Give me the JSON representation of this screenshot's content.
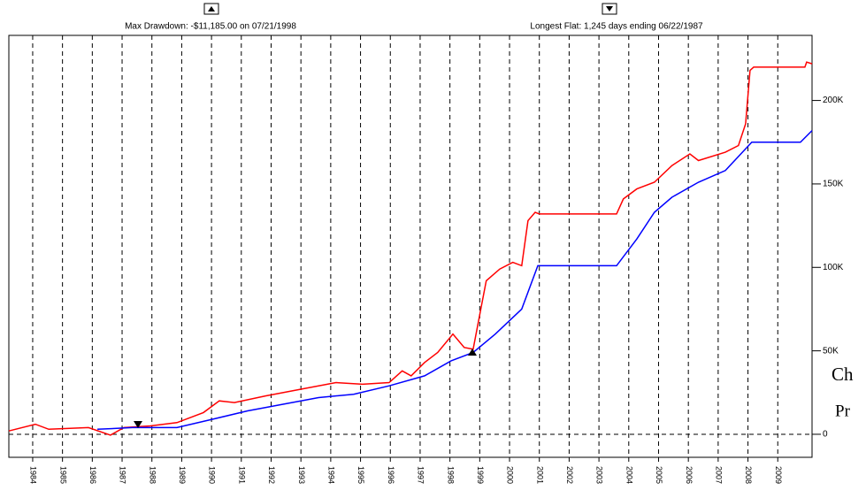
{
  "chart_data": {
    "type": "line",
    "annotations": [
      "Max Drawdown: -$11,185.00 on 07/21/1998",
      "Longest Flat: 1,245 days ending 06/22/1987"
    ],
    "overlay_text": [
      "Ch",
      "Pr"
    ],
    "xlim": [
      1983.2,
      2010.15
    ],
    "xticks": [
      1984,
      1985,
      1986,
      1987,
      1988,
      1989,
      1990,
      1991,
      1992,
      1993,
      1994,
      1995,
      1996,
      1997,
      1998,
      1999,
      2000,
      2001,
      2002,
      2003,
      2004,
      2005,
      2006,
      2007,
      2008,
      2009
    ],
    "ylim": [
      -13.8,
      239
    ],
    "yticks": [
      0,
      {
        "value": 50,
        "label": "50K"
      },
      {
        "value": 100,
        "label": "100K"
      },
      {
        "value": 150,
        "label": "150K"
      },
      {
        "value": 200,
        "label": "200K"
      }
    ],
    "grid": true,
    "series": [
      {
        "color": "#ff0000",
        "x": [
          1983.2,
          1984.09,
          1984.54,
          1985.87,
          1986.61,
          1987.06,
          1987.95,
          1988.84,
          1989.73,
          1990.26,
          1990.77,
          1991.81,
          1993.0,
          1994.18,
          1995.07,
          1995.96,
          1996.4,
          1996.7,
          1997.15,
          1997.59,
          1998.1,
          1998.48,
          1998.78,
          1999.08,
          1999.22,
          1999.67,
          2000.11,
          2000.41,
          2000.62,
          2000.86,
          2001.0,
          2003.59,
          2003.82,
          2004.27,
          2004.86,
          2005.45,
          2006.05,
          2006.34,
          2007.24,
          2007.68,
          2007.92,
          2008.07,
          2008.19,
          2009.91,
          2009.97,
          2010.15
        ],
        "values": [
          2,
          6,
          3,
          4,
          -0.5,
          4,
          5,
          7,
          13,
          20,
          19,
          23,
          27,
          31,
          30,
          31,
          38,
          35,
          43,
          49,
          60,
          52,
          51,
          79,
          92,
          99,
          103,
          101,
          128,
          133,
          132,
          132,
          141,
          147,
          151,
          161,
          168,
          164,
          169,
          173,
          186,
          218,
          220,
          220,
          223,
          222
        ]
      },
      {
        "color": "#0000ff",
        "x": [
          1986.17,
          1987.35,
          1988.84,
          1990.03,
          1991.21,
          1992.4,
          1993.59,
          1994.77,
          1995.96,
          1997.15,
          1998.04,
          1998.78,
          1999.52,
          2000.41,
          2000.95,
          2003.59,
          2004.27,
          2004.86,
          2005.45,
          2006.34,
          2007.24,
          2008.13,
          2009.76,
          2010.15
        ],
        "values": [
          3,
          4,
          4,
          9,
          14,
          18,
          22,
          24,
          29,
          35,
          44,
          49,
          60,
          75,
          101,
          101,
          117,
          133,
          142,
          151,
          158,
          175,
          175,
          182
        ]
      }
    ]
  }
}
